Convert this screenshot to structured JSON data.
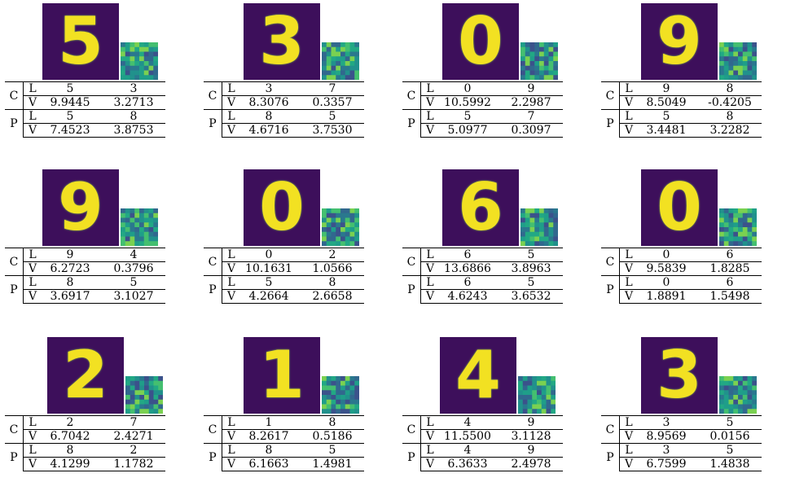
{
  "group_labels": {
    "c": "C",
    "p": "P"
  },
  "row_labels": {
    "l": "L",
    "v": "V"
  },
  "palette": {
    "dark": "#3d0f5b",
    "bright": "#f2e122",
    "mid": "#21918c"
  },
  "panels": [
    {
      "digit": "5",
      "c": {
        "l": [
          "5",
          "3"
        ],
        "v": [
          "9.9445",
          "3.2713"
        ]
      },
      "p": {
        "l": [
          "5",
          "8"
        ],
        "v": [
          "7.4523",
          "3.8753"
        ]
      }
    },
    {
      "digit": "3",
      "c": {
        "l": [
          "3",
          "7"
        ],
        "v": [
          "8.3076",
          "0.3357"
        ]
      },
      "p": {
        "l": [
          "8",
          "5"
        ],
        "v": [
          "4.6716",
          "3.7530"
        ]
      }
    },
    {
      "digit": "0",
      "c": {
        "l": [
          "0",
          "9"
        ],
        "v": [
          "10.5992",
          "2.2987"
        ]
      },
      "p": {
        "l": [
          "5",
          "7"
        ],
        "v": [
          "5.0977",
          "0.3097"
        ]
      }
    },
    {
      "digit": "9",
      "c": {
        "l": [
          "9",
          "8"
        ],
        "v": [
          "8.5049",
          "-0.4205"
        ]
      },
      "p": {
        "l": [
          "5",
          "8"
        ],
        "v": [
          "3.4481",
          "3.2282"
        ]
      }
    },
    {
      "digit": "9",
      "c": {
        "l": [
          "9",
          "4"
        ],
        "v": [
          "6.2723",
          "0.3796"
        ]
      },
      "p": {
        "l": [
          "8",
          "5"
        ],
        "v": [
          "3.6917",
          "3.1027"
        ]
      }
    },
    {
      "digit": "0",
      "c": {
        "l": [
          "0",
          "2"
        ],
        "v": [
          "10.1631",
          "1.0566"
        ]
      },
      "p": {
        "l": [
          "5",
          "8"
        ],
        "v": [
          "4.2664",
          "2.6658"
        ]
      }
    },
    {
      "digit": "6",
      "c": {
        "l": [
          "6",
          "5"
        ],
        "v": [
          "13.6866",
          "3.8963"
        ]
      },
      "p": {
        "l": [
          "6",
          "5"
        ],
        "v": [
          "4.6243",
          "3.6532"
        ]
      }
    },
    {
      "digit": "0",
      "c": {
        "l": [
          "0",
          "6"
        ],
        "v": [
          "9.5839",
          "1.8285"
        ]
      },
      "p": {
        "l": [
          "0",
          "6"
        ],
        "v": [
          "1.8891",
          "1.5498"
        ]
      }
    },
    {
      "digit": "2",
      "c": {
        "l": [
          "2",
          "7"
        ],
        "v": [
          "6.7042",
          "2.4271"
        ]
      },
      "p": {
        "l": [
          "8",
          "2"
        ],
        "v": [
          "4.1299",
          "1.1782"
        ]
      }
    },
    {
      "digit": "1",
      "c": {
        "l": [
          "1",
          "8"
        ],
        "v": [
          "8.2617",
          "0.5186"
        ]
      },
      "p": {
        "l": [
          "8",
          "5"
        ],
        "v": [
          "6.1663",
          "1.4981"
        ]
      }
    },
    {
      "digit": "4",
      "c": {
        "l": [
          "4",
          "9"
        ],
        "v": [
          "11.5500",
          "3.1128"
        ]
      },
      "p": {
        "l": [
          "4",
          "9"
        ],
        "v": [
          "6.3633",
          "2.4978"
        ]
      }
    },
    {
      "digit": "3",
      "c": {
        "l": [
          "3",
          "5"
        ],
        "v": [
          "8.9569",
          "0.0156"
        ]
      },
      "p": {
        "l": [
          "3",
          "5"
        ],
        "v": [
          "6.7599",
          "1.4838"
        ]
      }
    }
  ]
}
